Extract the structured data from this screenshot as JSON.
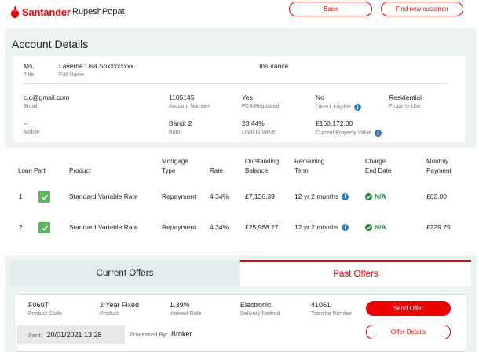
{
  "header": {
    "brand": "Santander",
    "username": "RupeshPopat",
    "back_label": "Back",
    "find_label": "Find new customer"
  },
  "account": {
    "section_title": "Account Details",
    "title_value": "Ms.",
    "title_label": "Title",
    "fullname_value": "Laverne Lisa Spxxxxxxxx",
    "fullname_label": "Full Name",
    "insurance_label": "Insurance",
    "email_value": "c.c@gmail.com",
    "email_label": "Email",
    "account_number_value": "1105145",
    "account_number_label": "Account Number",
    "fca_value": "Yes",
    "fca_label": "FCA Regulated",
    "omrt_value": "No",
    "omrt_label": "OMRT Eligible",
    "property_use_value": "Residential",
    "property_use_label": "Property Use",
    "mobile_value": "--",
    "mobile_label": "Mobile",
    "band_value": "Band: 2",
    "band_label": "Band",
    "ltv_value": "23.44%",
    "ltv_label": "Loan to Value",
    "property_value_value": "£160,172.00",
    "property_value_label": "Current Property Value"
  },
  "loans": {
    "headers": {
      "loan_part": "Loan Part",
      "product": "Product",
      "mortgage_type_1": "Mortgage",
      "mortgage_type_2": "Type",
      "rate": "Rate",
      "outstanding_1": "Outstanding",
      "outstanding_2": "Balance",
      "remaining_1": "Remaining",
      "remaining_2": "Term",
      "charge_1": "Charge",
      "charge_2": "End Date",
      "monthly_1": "Monthly",
      "monthly_2": "Payment"
    },
    "rows": [
      {
        "part": "1",
        "product": "Standard Variable Rate",
        "type": "Repayment",
        "rate": "4.34%",
        "balance": "£7,136.39",
        "term": "12 yr 2 months",
        "end_date": "N/A",
        "payment": "£63.00"
      },
      {
        "part": "2",
        "product": "Standard Variable Rate",
        "type": "Repayment",
        "rate": "4.34%",
        "balance": "£25,968.27",
        "term": "12 yr 2 months",
        "end_date": "N/A",
        "payment": "£229.25"
      }
    ]
  },
  "offers": {
    "tab_current": "Current Offers",
    "tab_past": "Past Offers",
    "product_code_value": "F060T",
    "product_code_label": "Product Code",
    "product_value": "2 Year Fixed",
    "product_label": "Product",
    "interest_value": "1.39%",
    "interest_label": "Interest Rate",
    "delivery_value": "Electronic",
    "delivery_label": "Delivery Method",
    "tranche_value": "41061",
    "tranche_label": "Tranche Number",
    "send_label": "Send Offer",
    "details_label": "Offer Details",
    "sent_label": "Sent:",
    "sent_value": "20/01/2021 13:28",
    "processed_label": "Processed By:",
    "processed_value": "Broker"
  },
  "colors": {
    "brand_red": "#ec0000",
    "background_grey": "#edf2f3",
    "success_green": "#5cb85c",
    "info_blue": "#2e7bbf"
  }
}
